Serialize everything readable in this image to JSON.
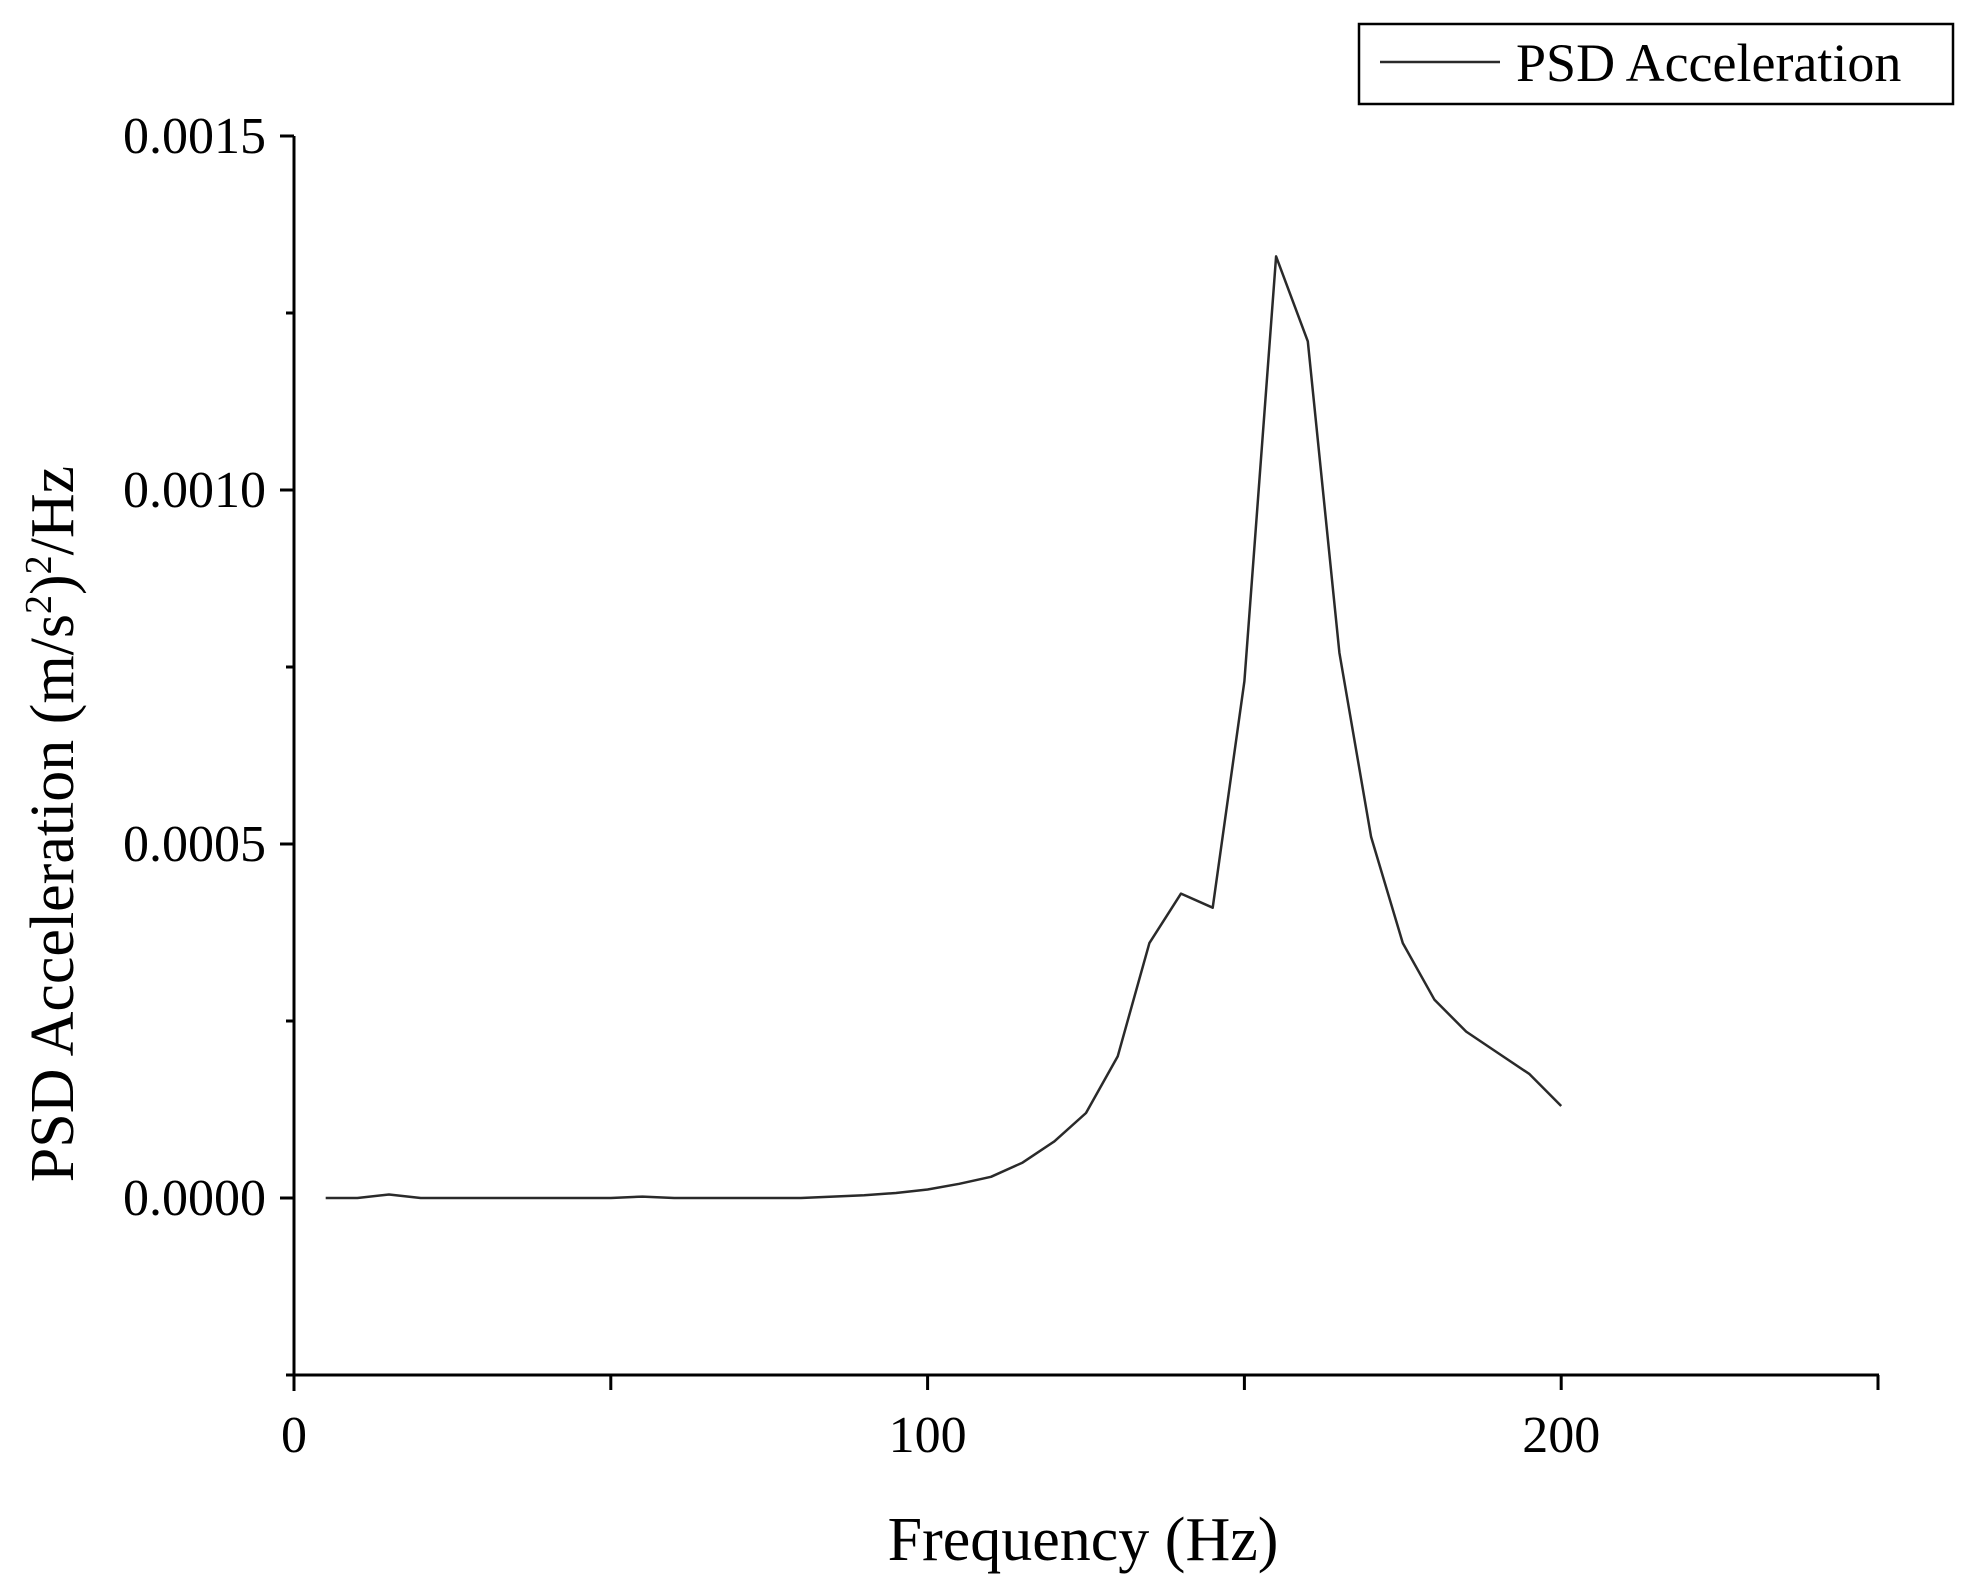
{
  "chart_data": {
    "type": "line",
    "xlabel": "Frequency (Hz)",
    "ylabel": {
      "prefix": "PSD Acceleration (m/s",
      "sup1": "2",
      "middle": ")",
      "sup2": "2",
      "suffix": "/Hz"
    },
    "xlim": [
      0,
      250
    ],
    "ylim": [
      -0.00025,
      0.0015
    ],
    "x_ticks": [
      0,
      50,
      100,
      150,
      200,
      250
    ],
    "x_tick_labels": [
      "0",
      "100",
      "200"
    ],
    "x_tick_label_values": [
      0,
      100,
      200
    ],
    "y_ticks": [
      -0.00025,
      0,
      0.00025,
      0.0005,
      0.00075,
      0.001,
      0.00125,
      0.0015
    ],
    "y_tick_labels": [
      "0.0000",
      "0.0005",
      "0.0010",
      "0.0015"
    ],
    "y_tick_label_values": [
      0,
      0.0005,
      0.001,
      0.0015
    ],
    "legend": {
      "position": "top-right"
    },
    "grid": false,
    "colors": {
      "line": "#2a2a2a",
      "axis": "#000000"
    },
    "series": [
      {
        "name": "PSD Acceleration",
        "x": [
          5,
          10,
          15,
          20,
          25,
          30,
          35,
          40,
          45,
          50,
          55,
          60,
          65,
          70,
          75,
          80,
          85,
          90,
          95,
          100,
          105,
          110,
          115,
          120,
          125,
          130,
          135,
          140,
          145,
          150,
          155,
          160,
          165,
          170,
          175,
          180,
          185,
          190,
          195,
          200
        ],
        "y": [
          0.0,
          0.0,
          5e-06,
          0.0,
          0.0,
          0.0,
          0.0,
          0.0,
          0.0,
          0.0,
          2e-06,
          0.0,
          0.0,
          0.0,
          0.0,
          0.0,
          2e-06,
          4e-06,
          7e-06,
          1.2e-05,
          2e-05,
          3e-05,
          5e-05,
          8e-05,
          0.00012,
          0.0002,
          0.00036,
          0.00043,
          0.00041,
          0.00073,
          0.00133,
          0.00121,
          0.00077,
          0.00051,
          0.00036,
          0.00028,
          0.000235,
          0.000205,
          0.000175,
          0.00013
        ]
      }
    ]
  }
}
